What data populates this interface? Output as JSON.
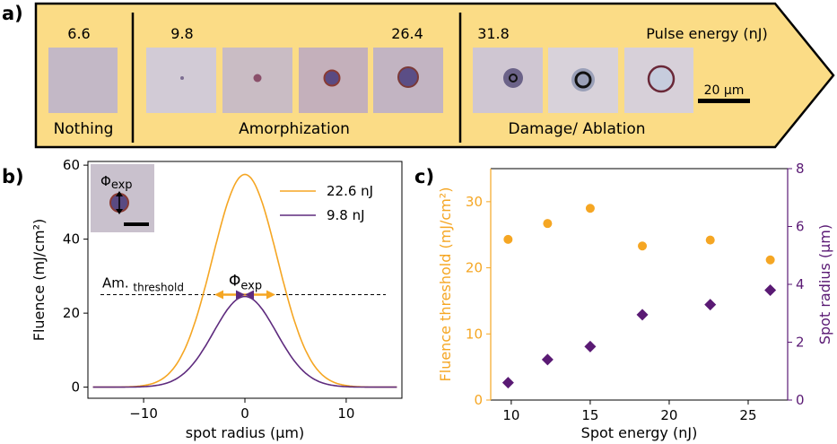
{
  "panel_a": {
    "label": "a)",
    "energies": [
      "6.6",
      "9.8",
      "26.4",
      "31.8"
    ],
    "pulse_energy_label": "Pulse energy (nJ)",
    "regions": [
      "Nothing",
      "Amorphization",
      "Damage/ Ablation"
    ],
    "scale_bar_label": "20 μm",
    "colors": {
      "arrow_fill": "#fbdc86",
      "image_bg": "#c8bcc6",
      "spot": "#5c4a80"
    }
  },
  "panel_b_label": "b)",
  "panel_c_label": "c)",
  "chart_data": [
    {
      "type": "line",
      "xlabel": "spot radius (μm)",
      "ylabel": "Fluence (mJ/cm²)",
      "xlim": [
        -15.5,
        15.5
      ],
      "ylim": [
        -3,
        61
      ],
      "xticks": [
        -10,
        0,
        10
      ],
      "yticks": [
        0,
        20,
        40,
        60
      ],
      "series": [
        {
          "name": "22.6 nJ",
          "color": "#f5a623",
          "peak": 57.5,
          "sigma": 3.2
        },
        {
          "name": "9.8 nJ",
          "color": "#5e2b7e",
          "peak": 24.5,
          "sigma": 3.1
        }
      ],
      "threshold": {
        "value": 25,
        "label_main": "Am.",
        "label_sub": "threshold"
      },
      "annotation": {
        "symbol": "Φ",
        "sub": "exp"
      },
      "legend_position": "top-right",
      "grid": false
    },
    {
      "type": "scatter",
      "xlabel": "Spot energy (nJ)",
      "ylabel_left": "Fluence threshold (mJ/cm²)",
      "ylabel_right": "Spot radius (μm)",
      "xlim": [
        8.7,
        27.5
      ],
      "ylim_left": [
        0,
        35
      ],
      "ylim_right": [
        0,
        8
      ],
      "xticks": [
        10,
        15,
        20,
        25
      ],
      "yticks_left": [
        0,
        10,
        20,
        30
      ],
      "yticks_right": [
        0,
        2,
        4,
        6,
        8
      ],
      "series": [
        {
          "name": "Fluence threshold",
          "axis": "left",
          "color": "#f5a623",
          "marker": "circle",
          "x": [
            9.8,
            12.3,
            15.0,
            18.3,
            22.6,
            26.4
          ],
          "y": [
            24.3,
            26.7,
            29.0,
            23.3,
            24.2,
            21.2
          ]
        },
        {
          "name": "Spot radius",
          "axis": "right",
          "color": "#5a1a74",
          "marker": "diamond",
          "x": [
            9.8,
            12.3,
            15.0,
            18.3,
            22.6,
            26.4
          ],
          "y": [
            0.6,
            1.4,
            1.85,
            2.95,
            3.3,
            3.8
          ]
        }
      ],
      "grid": false
    }
  ]
}
